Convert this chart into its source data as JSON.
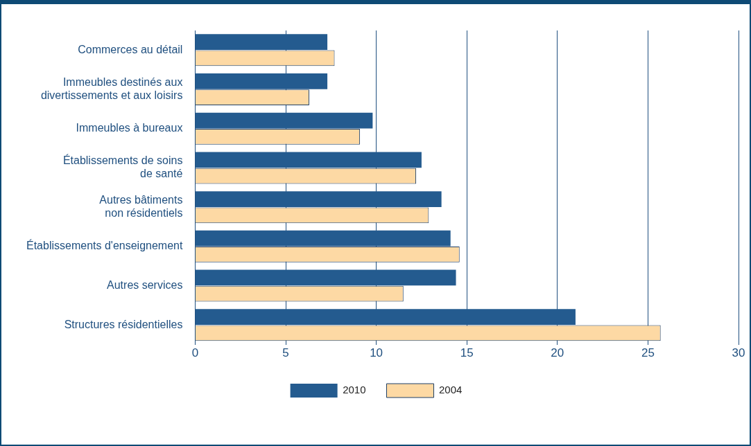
{
  "chart_data": {
    "type": "bar",
    "orientation": "horizontal",
    "categories": [
      "Commerces au détail",
      "Immeubles destinés aux\ndivertissements et aux loisirs",
      "Immeubles à bureaux",
      "Établissements de soins\nde santé",
      "Autres bâtiments\nnon résidentiels",
      "Établissements d'enseignement",
      "Autres services",
      "Structures résidentielles"
    ],
    "series": [
      {
        "name": "2010",
        "color": "#245b8f",
        "values": [
          7.3,
          7.3,
          9.8,
          12.5,
          13.6,
          14.1,
          14.4,
          21.0
        ]
      },
      {
        "name": "2004",
        "color": "#fdd9a4",
        "values": [
          7.7,
          6.3,
          9.1,
          12.2,
          12.9,
          14.6,
          11.5,
          25.7
        ]
      }
    ],
    "xlim": [
      0,
      30
    ],
    "xticks": [
      0,
      5,
      10,
      15,
      20,
      25,
      30
    ],
    "grid": "x",
    "legend": "bottom"
  }
}
